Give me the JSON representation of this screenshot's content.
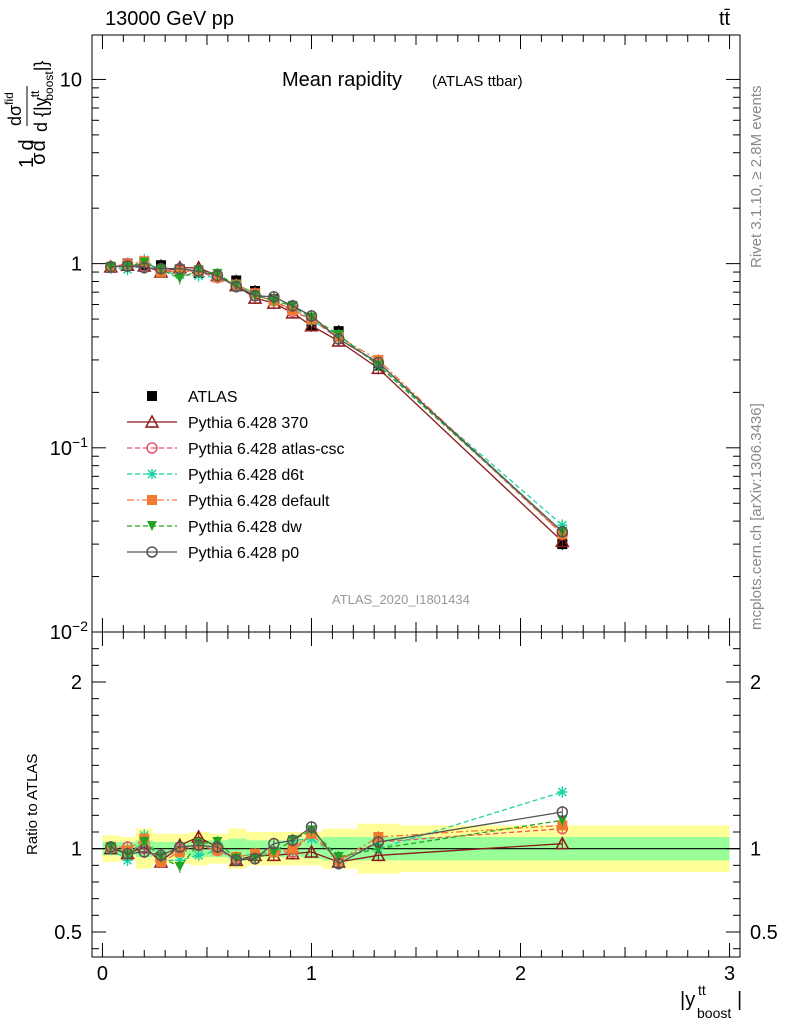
{
  "header": {
    "energy_label": "13000 GeV pp",
    "process_label": "tt̄"
  },
  "side_labels": {
    "rivet": "Rivet 3.1.10, ≥ 2.8M events",
    "mcplots": "mcplots.cern.ch [arXiv:1306.3436]"
  },
  "chart_data": [
    {
      "type": "line",
      "title": "Mean rapidity",
      "subtitle": "(ATLAS ttbar)",
      "watermark": "ATLAS_2020_I1801434",
      "ylabel": "1/σ dσ^fid / d{|y_boost^tt|}",
      "yscale": "log",
      "ylim": [
        0.01,
        15
      ],
      "xlim": [
        -0.05,
        3.05
      ],
      "y_ticks": [
        {
          "value": 0.01,
          "label": "10",
          "sup": "−2"
        },
        {
          "value": 0.1,
          "label": "10",
          "sup": "−1"
        },
        {
          "value": 1,
          "label": "1",
          "sup": ""
        },
        {
          "value": 10,
          "label": "10",
          "sup": ""
        }
      ],
      "x": [
        0.04,
        0.12,
        0.2,
        0.28,
        0.37,
        0.46,
        0.55,
        0.64,
        0.73,
        0.82,
        0.91,
        1.0,
        1.13,
        1.32,
        2.2
      ],
      "series": [
        {
          "name": "ATLAS",
          "color": "#000000",
          "marker": "square",
          "line": "none",
          "values": [
            0.95,
            1.0,
            0.97,
            0.98,
            0.93,
            0.89,
            0.85,
            0.81,
            0.71,
            0.64,
            0.56,
            0.46,
            0.43,
            0.28,
            0.03
          ]
        },
        {
          "name": "Pythia 6.428 370",
          "color": "#8b1a1a",
          "marker": "triangle-open",
          "line": "solid",
          "values": [
            0.96,
            0.98,
            0.97,
            0.9,
            0.95,
            0.95,
            0.86,
            0.76,
            0.65,
            0.61,
            0.54,
            0.46,
            0.38,
            0.27,
            0.031
          ]
        },
        {
          "name": "Pythia 6.428 atlas-csc",
          "color": "#e8556a",
          "marker": "circle-open",
          "line": "dashed",
          "values": [
            0.96,
            1.0,
            0.97,
            0.91,
            0.93,
            0.9,
            0.84,
            0.76,
            0.67,
            0.63,
            0.55,
            0.5,
            0.39,
            0.29,
            0.034
          ]
        },
        {
          "name": "Pythia 6.428 d6t",
          "color": "#1dd3a5",
          "marker": "star",
          "line": "dashed",
          "values": [
            0.95,
            0.93,
            1.05,
            0.91,
            0.87,
            0.86,
            0.84,
            0.77,
            0.69,
            0.63,
            0.59,
            0.49,
            0.41,
            0.28,
            0.038
          ]
        },
        {
          "name": "Pythia 6.428 default",
          "color": "#f07a30",
          "marker": "square",
          "line": "dashdot",
          "values": [
            0.96,
            0.99,
            1.03,
            0.9,
            0.91,
            0.91,
            0.84,
            0.77,
            0.69,
            0.63,
            0.56,
            0.5,
            0.4,
            0.3,
            0.034
          ]
        },
        {
          "name": "Pythia 6.428 dw",
          "color": "#22a322",
          "marker": "triangle-down",
          "line": "dashed",
          "values": [
            0.96,
            0.96,
            1.01,
            0.93,
            0.83,
            0.92,
            0.88,
            0.76,
            0.67,
            0.63,
            0.59,
            0.51,
            0.41,
            0.28,
            0.035
          ]
        },
        {
          "name": "Pythia 6.428 p0",
          "color": "#555555",
          "marker": "circle-open",
          "line": "solid",
          "values": [
            0.96,
            0.97,
            0.95,
            0.94,
            0.94,
            0.91,
            0.86,
            0.75,
            0.67,
            0.66,
            0.59,
            0.52,
            0.39,
            0.29,
            0.035
          ]
        }
      ]
    },
    {
      "type": "line",
      "ylabel": "Ratio to ATLAS",
      "xlabel": "|y_boost^tt|",
      "xlim": [
        -0.05,
        3.05
      ],
      "ylim": [
        0.35,
        2.3
      ],
      "y_ticks": [
        0.5,
        1,
        2
      ],
      "x_ticks": [
        0,
        1,
        2,
        3
      ],
      "band_edges": [
        0.0,
        0.08,
        0.16,
        0.24,
        0.33,
        0.42,
        0.51,
        0.6,
        0.69,
        0.78,
        0.87,
        0.96,
        1.05,
        1.22,
        1.42,
        3.0
      ],
      "band_stat": [
        0.04,
        0.04,
        0.05,
        0.04,
        0.04,
        0.05,
        0.05,
        0.06,
        0.05,
        0.05,
        0.05,
        0.06,
        0.07,
        0.07,
        0.07
      ],
      "band_total": [
        0.08,
        0.07,
        0.12,
        0.09,
        0.09,
        0.1,
        0.09,
        0.12,
        0.1,
        0.1,
        0.1,
        0.1,
        0.12,
        0.15,
        0.14
      ],
      "band_colors": {
        "stat": "#99ff99",
        "total": "#ffff99"
      },
      "x": [
        0.04,
        0.12,
        0.2,
        0.28,
        0.37,
        0.46,
        0.55,
        0.64,
        0.73,
        0.82,
        0.91,
        1.0,
        1.13,
        1.32,
        2.2
      ],
      "series": [
        {
          "name": "Pythia 6.428 370",
          "color": "#8b1a1a",
          "marker": "triangle-open",
          "line": "solid",
          "values": [
            1.0,
            0.97,
            1.01,
            0.92,
            1.02,
            1.07,
            1.01,
            0.93,
            0.96,
            0.96,
            0.97,
            0.98,
            0.92,
            0.96,
            1.03
          ]
        },
        {
          "name": "Pythia 6.428 atlas-csc",
          "color": "#e8556a",
          "marker": "circle-open",
          "line": "dashed",
          "values": [
            1.01,
            1.01,
            1.0,
            0.93,
            1.0,
            1.02,
            0.99,
            0.94,
            0.94,
            0.98,
            0.98,
            1.09,
            0.93,
            1.04,
            1.12
          ]
        },
        {
          "name": "Pythia 6.428 d6t",
          "color": "#1dd3a5",
          "marker": "star",
          "line": "dashed",
          "values": [
            1.0,
            0.93,
            1.08,
            0.93,
            0.93,
            0.96,
            0.99,
            0.95,
            0.97,
            0.98,
            1.05,
            1.06,
            0.95,
            1.0,
            1.34
          ]
        },
        {
          "name": "Pythia 6.428 default",
          "color": "#f07a30",
          "marker": "square",
          "line": "dashdot",
          "values": [
            1.01,
            0.99,
            1.06,
            0.92,
            0.98,
            1.02,
            0.99,
            0.95,
            0.97,
            0.98,
            1.0,
            1.09,
            0.93,
            1.07,
            1.14
          ]
        },
        {
          "name": "Pythia 6.428 dw",
          "color": "#22a322",
          "marker": "triangle-down",
          "line": "dashed",
          "values": [
            1.01,
            0.96,
            1.04,
            0.95,
            0.89,
            1.03,
            1.04,
            0.94,
            0.94,
            0.98,
            1.05,
            1.11,
            0.95,
            1.0,
            1.17
          ]
        },
        {
          "name": "Pythia 6.428 p0",
          "color": "#555555",
          "marker": "circle-open",
          "line": "solid",
          "values": [
            1.01,
            0.97,
            0.98,
            0.96,
            1.01,
            1.02,
            1.01,
            0.93,
            0.94,
            1.03,
            1.05,
            1.13,
            0.91,
            1.04,
            1.22
          ]
        }
      ]
    }
  ]
}
